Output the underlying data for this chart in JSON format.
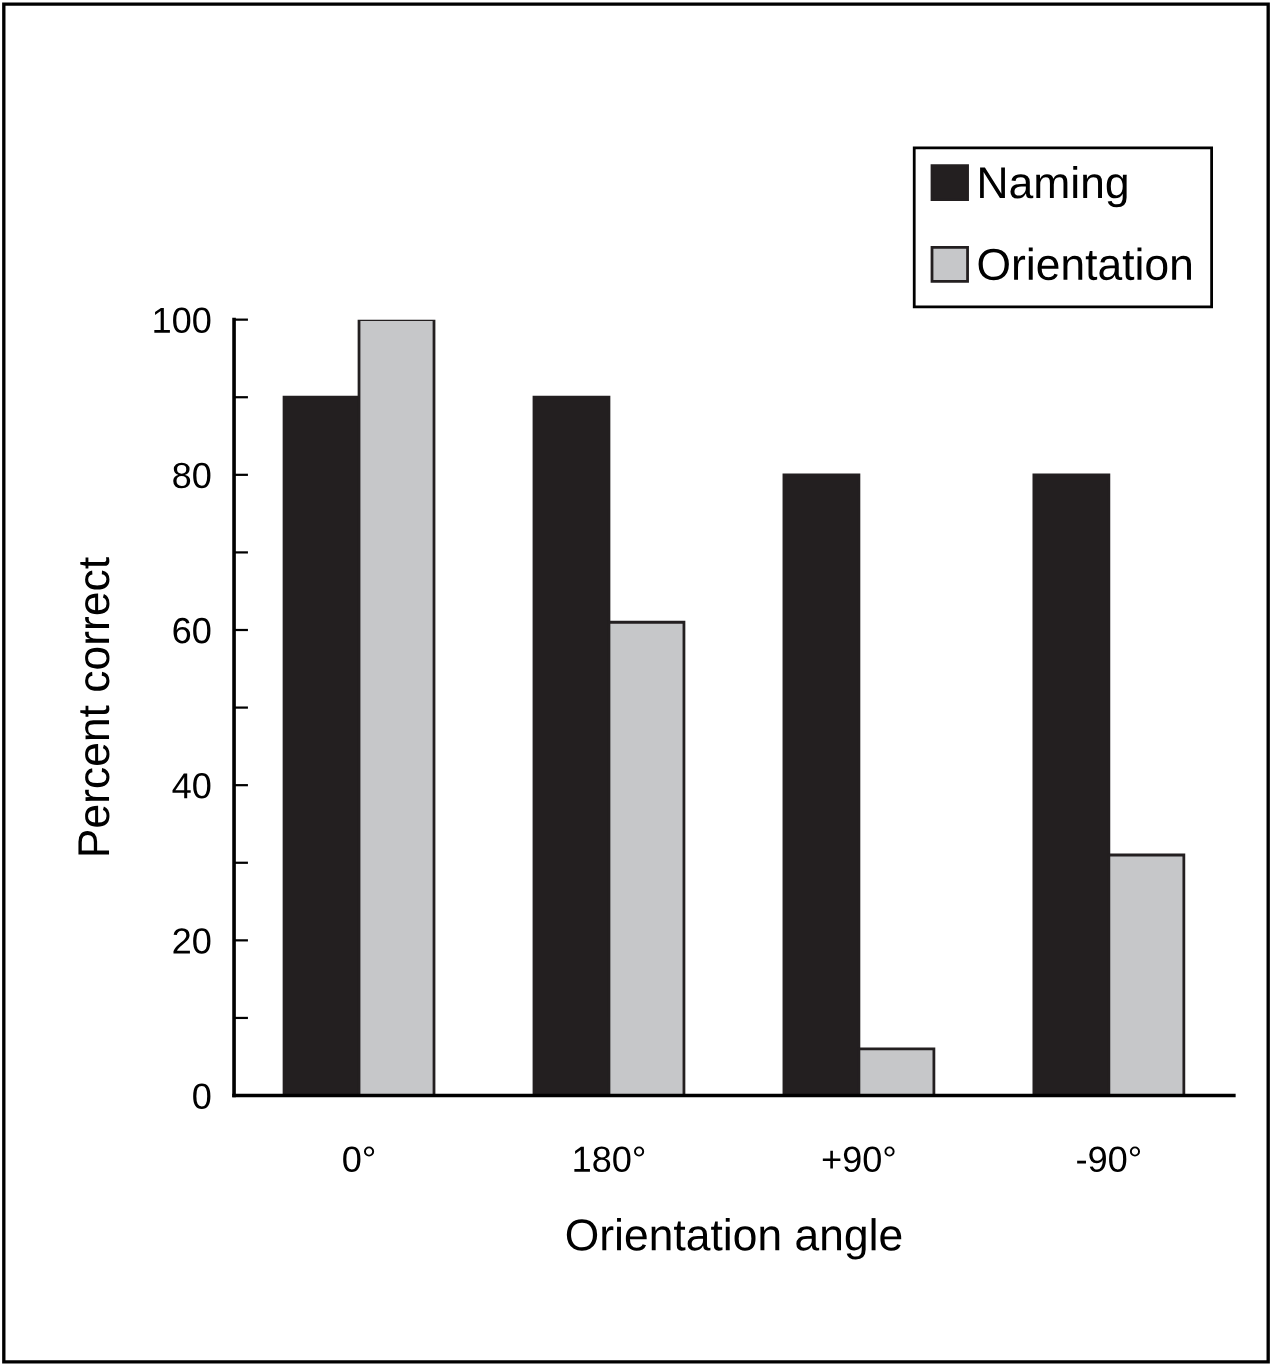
{
  "chart_data": {
    "type": "bar",
    "xlabel": "Orientation angle",
    "ylabel": "Percent correct",
    "categories": [
      "0°",
      "180°",
      "+90°",
      "-90°"
    ],
    "series": [
      {
        "name": "Naming",
        "color": "#231f20",
        "values": [
          90,
          90,
          80,
          80
        ]
      },
      {
        "name": "Orientation",
        "color": "#c6c7c9",
        "values": [
          100,
          61,
          6,
          31
        ]
      }
    ],
    "ylim": [
      0,
      100
    ],
    "yticks": [
      0,
      {
        "value": 10,
        "label": null
      },
      20,
      {
        "value": 30,
        "label": null
      },
      40,
      {
        "value": 50,
        "label": null
      },
      60,
      {
        "value": 70,
        "label": null
      },
      80,
      {
        "value": 90,
        "label": null
      },
      100
    ],
    "grid": false,
    "legend": "top right"
  }
}
